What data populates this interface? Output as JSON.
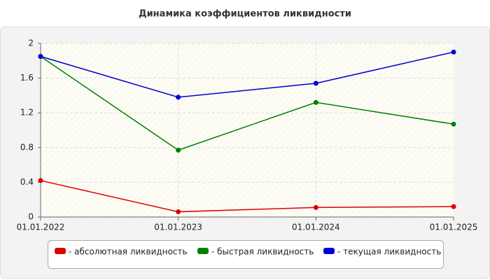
{
  "chart_data": {
    "type": "line",
    "title": "Динамика коэффициентов ликвидности",
    "categories": [
      "01.01.2022",
      "01.01.2023",
      "01.01.2024",
      "01.01.2025"
    ],
    "series": [
      {
        "name": "- абсолютная ликвидность",
        "color": "#e00000",
        "values": [
          0.42,
          0.06,
          0.11,
          0.12
        ]
      },
      {
        "name": "- быстрая ликвидность",
        "color": "#008000",
        "values": [
          1.85,
          0.77,
          1.32,
          1.07
        ]
      },
      {
        "name": "- текущая ликвидность",
        "color": "#0000d0",
        "values": [
          1.85,
          1.38,
          1.54,
          1.9
        ]
      }
    ],
    "ylim": [
      0,
      2
    ],
    "yticks": [
      0,
      0.4,
      0.8,
      1.2,
      1.6,
      2
    ],
    "grid": true,
    "legend": "bottom"
  }
}
